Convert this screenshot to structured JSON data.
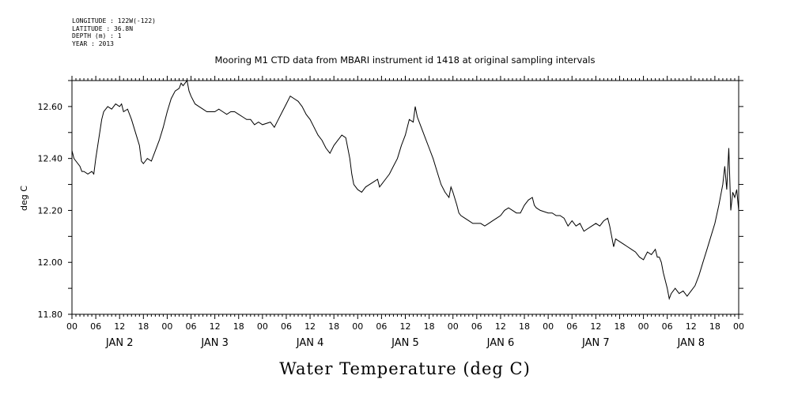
{
  "metadata": {
    "longitude": "LONGITUDE : 122W(-122)",
    "latitude": "LATITUDE : 36.8N",
    "depth": "DEPTH (m) : 1",
    "year": "YEAR : 2013"
  },
  "chart_data": {
    "type": "line",
    "title": "Mooring M1 CTD data from MBARI instrument id 1418 at original sampling intervals",
    "xlabel": "Water Temperature (deg C)",
    "ylabel": "deg C",
    "x_unit": "hours from 2013-01-02 00:00",
    "xlim": [
      0,
      168
    ],
    "ylim": [
      11.8,
      12.7
    ],
    "yticks": [
      "12.60",
      "12.40",
      "12.20",
      "12.00",
      "11.80"
    ],
    "hour_labels": [
      "00",
      "06",
      "12",
      "18"
    ],
    "day_labels": [
      "JAN  2",
      "JAN  3",
      "JAN  4",
      "JAN  5",
      "JAN  6",
      "JAN  7",
      "JAN  8"
    ],
    "series": [
      {
        "points": [
          [
            0,
            12.43
          ],
          [
            0.5,
            12.4
          ],
          [
            1,
            12.39
          ],
          [
            2,
            12.37
          ],
          [
            2.5,
            12.35
          ],
          [
            3,
            12.35
          ],
          [
            4,
            12.34
          ],
          [
            5,
            12.35
          ],
          [
            5.5,
            12.34
          ],
          [
            6,
            12.4
          ],
          [
            6.5,
            12.45
          ],
          [
            7,
            12.5
          ],
          [
            7.5,
            12.55
          ],
          [
            8,
            12.58
          ],
          [
            9,
            12.6
          ],
          [
            10,
            12.59
          ],
          [
            11,
            12.61
          ],
          [
            12,
            12.6
          ],
          [
            12.5,
            12.61
          ],
          [
            13,
            12.58
          ],
          [
            14,
            12.59
          ],
          [
            15,
            12.55
          ],
          [
            16,
            12.5
          ],
          [
            17,
            12.45
          ],
          [
            17.5,
            12.39
          ],
          [
            18,
            12.38
          ],
          [
            18.5,
            12.39
          ],
          [
            19,
            12.4
          ],
          [
            20,
            12.39
          ],
          [
            21,
            12.43
          ],
          [
            22,
            12.47
          ],
          [
            23,
            12.52
          ],
          [
            24,
            12.58
          ],
          [
            25,
            12.63
          ],
          [
            26,
            12.66
          ],
          [
            27,
            12.67
          ],
          [
            27.5,
            12.69
          ],
          [
            28,
            12.68
          ],
          [
            29,
            12.7
          ],
          [
            29.5,
            12.66
          ],
          [
            30,
            12.64
          ],
          [
            31,
            12.61
          ],
          [
            32,
            12.6
          ],
          [
            33,
            12.59
          ],
          [
            34,
            12.58
          ],
          [
            36,
            12.58
          ],
          [
            37,
            12.59
          ],
          [
            38,
            12.58
          ],
          [
            39,
            12.57
          ],
          [
            40,
            12.58
          ],
          [
            41,
            12.58
          ],
          [
            42,
            12.57
          ],
          [
            43,
            12.56
          ],
          [
            44,
            12.55
          ],
          [
            45,
            12.55
          ],
          [
            46,
            12.53
          ],
          [
            47,
            12.54
          ],
          [
            48,
            12.53
          ],
          [
            50,
            12.54
          ],
          [
            51,
            12.52
          ],
          [
            52,
            12.55
          ],
          [
            53,
            12.58
          ],
          [
            54,
            12.61
          ],
          [
            55,
            12.64
          ],
          [
            56,
            12.63
          ],
          [
            57,
            12.62
          ],
          [
            58,
            12.6
          ],
          [
            59,
            12.57
          ],
          [
            60,
            12.55
          ],
          [
            61,
            12.52
          ],
          [
            62,
            12.49
          ],
          [
            63,
            12.47
          ],
          [
            64,
            12.44
          ],
          [
            65,
            12.42
          ],
          [
            66,
            12.45
          ],
          [
            67,
            12.47
          ],
          [
            68,
            12.49
          ],
          [
            69,
            12.48
          ],
          [
            70,
            12.4
          ],
          [
            70.5,
            12.34
          ],
          [
            71,
            12.3
          ],
          [
            72,
            12.28
          ],
          [
            73,
            12.27
          ],
          [
            74,
            12.29
          ],
          [
            75,
            12.3
          ],
          [
            76,
            12.31
          ],
          [
            77,
            12.32
          ],
          [
            77.5,
            12.29
          ],
          [
            78,
            12.3
          ],
          [
            79,
            12.32
          ],
          [
            80,
            12.34
          ],
          [
            81,
            12.37
          ],
          [
            82,
            12.4
          ],
          [
            83,
            12.45
          ],
          [
            84,
            12.49
          ],
          [
            85,
            12.55
          ],
          [
            86,
            12.54
          ],
          [
            86.5,
            12.6
          ],
          [
            87,
            12.56
          ],
          [
            88,
            12.52
          ],
          [
            89,
            12.48
          ],
          [
            90,
            12.44
          ],
          [
            91,
            12.4
          ],
          [
            92,
            12.35
          ],
          [
            93,
            12.3
          ],
          [
            94,
            12.27
          ],
          [
            95,
            12.25
          ],
          [
            95.5,
            12.29
          ],
          [
            96,
            12.27
          ],
          [
            97,
            12.22
          ],
          [
            97.5,
            12.19
          ],
          [
            98,
            12.18
          ],
          [
            99,
            12.17
          ],
          [
            100,
            12.16
          ],
          [
            101,
            12.15
          ],
          [
            102,
            12.15
          ],
          [
            103,
            12.15
          ],
          [
            104,
            12.14
          ],
          [
            105,
            12.15
          ],
          [
            106,
            12.16
          ],
          [
            107,
            12.17
          ],
          [
            108,
            12.18
          ],
          [
            109,
            12.2
          ],
          [
            110,
            12.21
          ],
          [
            111,
            12.2
          ],
          [
            112,
            12.19
          ],
          [
            113,
            12.19
          ],
          [
            114,
            12.22
          ],
          [
            115,
            12.24
          ],
          [
            116,
            12.25
          ],
          [
            116.5,
            12.22
          ],
          [
            117,
            12.21
          ],
          [
            118,
            12.2
          ],
          [
            120,
            12.19
          ],
          [
            121,
            12.19
          ],
          [
            122,
            12.18
          ],
          [
            123,
            12.18
          ],
          [
            124,
            12.17
          ],
          [
            125,
            12.14
          ],
          [
            126,
            12.16
          ],
          [
            127,
            12.14
          ],
          [
            128,
            12.15
          ],
          [
            129,
            12.12
          ],
          [
            130,
            12.13
          ],
          [
            131,
            12.14
          ],
          [
            132,
            12.15
          ],
          [
            133,
            12.14
          ],
          [
            134,
            12.16
          ],
          [
            135,
            12.17
          ],
          [
            135.5,
            12.14
          ],
          [
            136,
            12.1
          ],
          [
            136.5,
            12.06
          ],
          [
            137,
            12.09
          ],
          [
            138,
            12.08
          ],
          [
            139,
            12.07
          ],
          [
            140,
            12.06
          ],
          [
            141,
            12.05
          ],
          [
            142,
            12.04
          ],
          [
            143,
            12.02
          ],
          [
            144,
            12.01
          ],
          [
            145,
            12.04
          ],
          [
            146,
            12.03
          ],
          [
            147,
            12.05
          ],
          [
            147.5,
            12.02
          ],
          [
            148,
            12.02
          ],
          [
            148.5,
            12.0
          ],
          [
            149,
            11.96
          ],
          [
            150,
            11.9
          ],
          [
            150.5,
            11.86
          ],
          [
            151,
            11.88
          ],
          [
            152,
            11.9
          ],
          [
            153,
            11.88
          ],
          [
            154,
            11.89
          ],
          [
            155,
            11.87
          ],
          [
            156,
            11.89
          ],
          [
            157,
            11.91
          ],
          [
            158,
            11.95
          ],
          [
            159,
            12.0
          ],
          [
            160,
            12.05
          ],
          [
            161,
            12.1
          ],
          [
            162,
            12.15
          ],
          [
            163,
            12.22
          ],
          [
            164,
            12.3
          ],
          [
            164.5,
            12.37
          ],
          [
            165,
            12.28
          ],
          [
            165.5,
            12.44
          ],
          [
            166,
            12.2
          ],
          [
            166.5,
            12.27
          ],
          [
            167,
            12.25
          ],
          [
            167.5,
            12.28
          ],
          [
            168,
            12.2
          ]
        ]
      }
    ]
  }
}
